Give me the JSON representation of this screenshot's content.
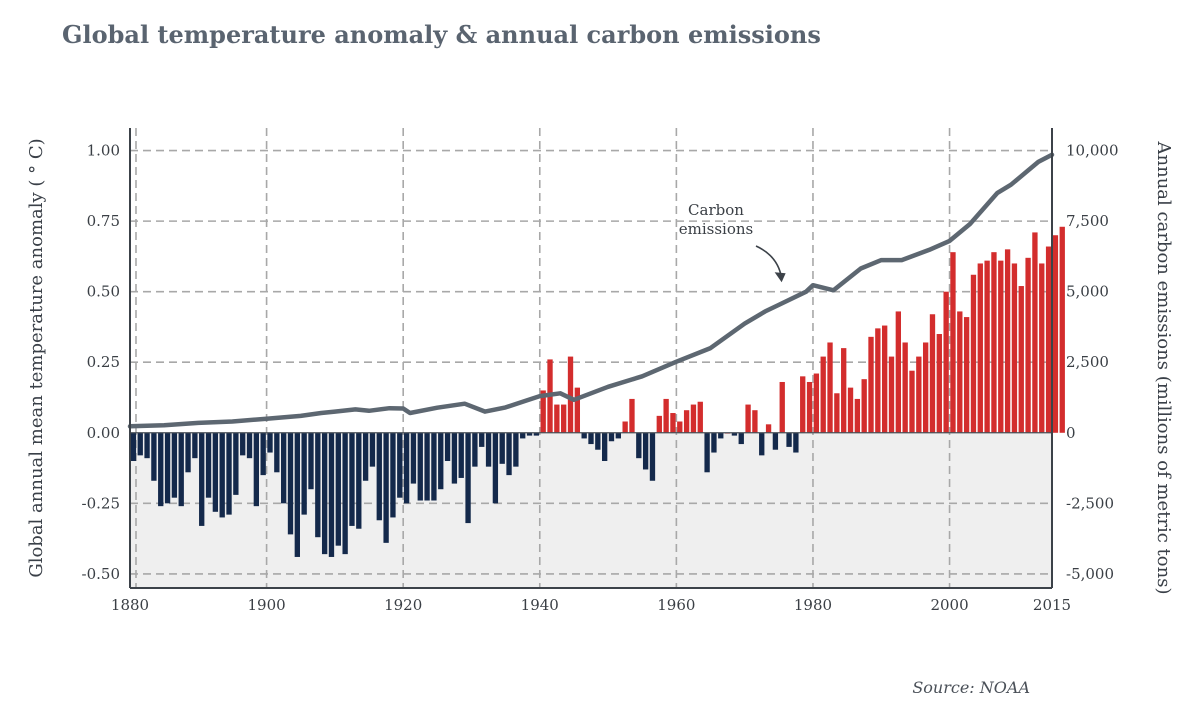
{
  "title": "Global temperature anomaly & annual carbon emissions",
  "source": "Source: NOAA",
  "colors": {
    "negative_bar": "#14294b",
    "positive_bar": "#d32d2d",
    "emissions_line": "#5d6771",
    "negative_region": "#efefef",
    "grid": "#a8a8a8",
    "axis": "#3c4249"
  },
  "chart_data": {
    "type": "bar",
    "title": "Global temperature anomaly & annual carbon emissions",
    "grid": true,
    "x": {
      "range": [
        1880,
        2015
      ],
      "tick_values": [
        1880,
        1900,
        1920,
        1940,
        1960,
        1980,
        2000,
        2015
      ],
      "tick_labels": [
        "1880",
        "1900",
        "1920",
        "1940",
        "1960",
        "1980",
        "2000",
        "2015"
      ]
    },
    "y_left": {
      "label": "Global annual mean temperature anomaly ( ° C)",
      "range": [
        -0.55,
        1.08
      ],
      "tick_values": [
        -0.5,
        -0.25,
        0,
        0.25,
        0.5,
        0.75,
        1.0
      ],
      "tick_labels": [
        "-0.50",
        "-0.25",
        "0.00",
        "0.25",
        "0.50",
        "0.75",
        "1.00"
      ]
    },
    "y_right": {
      "label": "Annual carbon emissions (millions of metric tons)",
      "range": [
        -5500,
        10800
      ],
      "tick_values": [
        -5000,
        -2500,
        0,
        2500,
        5000,
        7500,
        10000
      ],
      "tick_labels": [
        "-5,000",
        "-2,500",
        "0",
        "2,500",
        "5,000",
        "7,500",
        "10,000"
      ]
    },
    "series": [
      {
        "type": "bar",
        "axis": "left",
        "start_year": 1880,
        "values": [
          -0.1,
          -0.08,
          -0.09,
          -0.17,
          -0.26,
          -0.25,
          -0.23,
          -0.26,
          -0.14,
          -0.09,
          -0.33,
          -0.23,
          -0.28,
          -0.3,
          -0.29,
          -0.22,
          -0.08,
          -0.09,
          -0.26,
          -0.15,
          -0.07,
          -0.14,
          -0.25,
          -0.36,
          -0.44,
          -0.29,
          -0.2,
          -0.37,
          -0.43,
          -0.44,
          -0.4,
          -0.43,
          -0.33,
          -0.34,
          -0.17,
          -0.12,
          -0.31,
          -0.39,
          -0.3,
          -0.23,
          -0.25,
          -0.18,
          -0.24,
          -0.24,
          -0.24,
          -0.2,
          -0.1,
          -0.18,
          -0.16,
          -0.32,
          -0.12,
          -0.05,
          -0.12,
          -0.25,
          -0.11,
          -0.15,
          -0.12,
          -0.02,
          -0.01,
          -0.01,
          0.15,
          0.26,
          0.1,
          0.1,
          0.27,
          0.16,
          -0.02,
          -0.04,
          -0.06,
          -0.1,
          -0.03,
          -0.02,
          0.04,
          0.12,
          -0.09,
          -0.13,
          -0.17,
          0.06,
          0.12,
          0.07,
          0.04,
          0.08,
          0.1,
          0.11,
          -0.14,
          -0.07,
          -0.02,
          0.0,
          -0.01,
          -0.04,
          0.1,
          0.08,
          -0.08,
          0.03,
          -0.06,
          0.18,
          -0.05,
          -0.07,
          0.2,
          0.18,
          0.21,
          0.27,
          0.32,
          0.14,
          0.3,
          0.16,
          0.12,
          0.19,
          0.34,
          0.37,
          0.38,
          0.27,
          0.43,
          0.32,
          0.22,
          0.27,
          0.32,
          0.42,
          0.35,
          0.5,
          0.64,
          0.43,
          0.41,
          0.56,
          0.6,
          0.61,
          0.64,
          0.61,
          0.65,
          0.6,
          0.52,
          0.62,
          0.71,
          0.6,
          0.66,
          0.7,
          0.73
        ]
      },
      {
        "type": "line",
        "axis": "right",
        "name": "Carbon\nemissions",
        "x": [
          1880,
          1885,
          1890,
          1895,
          1900,
          1905,
          1908,
          1910,
          1913,
          1915,
          1918,
          1920,
          1921,
          1925,
          1929,
          1932,
          1935,
          1938,
          1940,
          1943,
          1945,
          1950,
          1955,
          1960,
          1965,
          1970,
          1973,
          1975,
          1979,
          1980,
          1983,
          1987,
          1990,
          1993,
          1997,
          2000,
          2003,
          2007,
          2009,
          2013,
          2015
        ],
        "y": [
          230,
          270,
          350,
          400,
          500,
          600,
          700,
          750,
          830,
          780,
          870,
          860,
          700,
          890,
          1030,
          750,
          900,
          1140,
          1300,
          1400,
          1170,
          1630,
          2000,
          2520,
          3000,
          3870,
          4300,
          4530,
          5000,
          5230,
          5050,
          5820,
          6120,
          6120,
          6480,
          6800,
          7400,
          8500,
          8790,
          9600,
          9850
        ]
      }
    ],
    "annotations": [
      {
        "text_lines": [
          "Carbon",
          "emissions"
        ],
        "target": [
          1976,
          5050
        ]
      }
    ]
  }
}
